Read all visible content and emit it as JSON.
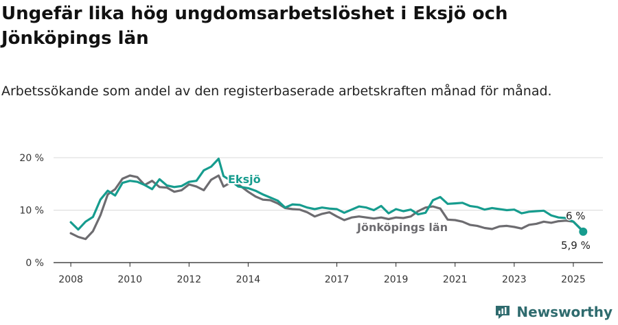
{
  "title": "Ungefär lika hög ungdomsarbetslöshet i Eksjö och Jönköpings län",
  "subtitle": "Arbetssökande som andel av den registerbaserade arbetskraften månad för månad.",
  "brand": {
    "name": "Newsworthy",
    "logo_icon": "newsworthy-logo-icon"
  },
  "colors": {
    "eksjo": "#169c8e",
    "lan": "#6d6c70",
    "grid": "#d9d9d9",
    "axis": "#222222"
  },
  "chart_data": {
    "type": "line",
    "y_axis": {
      "ylim": [
        0,
        20
      ],
      "ticks": [
        0,
        10,
        20
      ],
      "tick_labels": [
        "0 %",
        "10 %",
        "20 %"
      ],
      "unit": "%"
    },
    "x_axis": {
      "xlim": [
        "2007-06",
        "2026-01"
      ],
      "ticks": [
        2008,
        2010,
        2012,
        2014,
        2017,
        2019,
        2021,
        2023,
        2025
      ],
      "tick_labels": [
        "2008",
        "2010",
        "2012",
        "2014",
        "2017",
        "2019",
        "2021",
        "2023",
        "2025"
      ]
    },
    "grid": true,
    "series": [
      {
        "name": "Eksjö",
        "label": "Eksjö",
        "end_label": "5,9 %",
        "points": [
          [
            "2008-01",
            7.7
          ],
          [
            "2008-04",
            6.3
          ],
          [
            "2008-07",
            7.8
          ],
          [
            "2008-10",
            8.7
          ],
          [
            "2009-01",
            12.0
          ],
          [
            "2009-04",
            13.7
          ],
          [
            "2009-07",
            12.8
          ],
          [
            "2009-10",
            15.2
          ],
          [
            "2010-01",
            15.6
          ],
          [
            "2010-04",
            15.4
          ],
          [
            "2010-07",
            14.8
          ],
          [
            "2010-10",
            14.0
          ],
          [
            "2011-01",
            15.9
          ],
          [
            "2011-04",
            14.7
          ],
          [
            "2011-07",
            14.4
          ],
          [
            "2011-10",
            14.6
          ],
          [
            "2012-01",
            15.4
          ],
          [
            "2012-04",
            15.6
          ],
          [
            "2012-07",
            17.6
          ],
          [
            "2012-10",
            18.3
          ],
          [
            "2013-01",
            19.8
          ],
          [
            "2013-03",
            16.5
          ],
          [
            "2013-06",
            15.6
          ],
          [
            "2013-09",
            14.5
          ],
          [
            "2014-01",
            14.2
          ],
          [
            "2014-04",
            13.7
          ],
          [
            "2014-07",
            13.0
          ],
          [
            "2014-10",
            12.4
          ],
          [
            "2015-01",
            11.8
          ],
          [
            "2015-04",
            10.5
          ],
          [
            "2015-07",
            11.1
          ],
          [
            "2015-10",
            11.0
          ],
          [
            "2016-01",
            10.5
          ],
          [
            "2016-04",
            10.2
          ],
          [
            "2016-07",
            10.5
          ],
          [
            "2016-10",
            10.3
          ],
          [
            "2017-01",
            10.2
          ],
          [
            "2017-04",
            9.5
          ],
          [
            "2017-07",
            10.1
          ],
          [
            "2017-10",
            10.7
          ],
          [
            "2018-01",
            10.5
          ],
          [
            "2018-04",
            10.0
          ],
          [
            "2018-07",
            10.8
          ],
          [
            "2018-10",
            9.4
          ],
          [
            "2019-01",
            10.2
          ],
          [
            "2019-04",
            9.8
          ],
          [
            "2019-07",
            10.1
          ],
          [
            "2019-10",
            9.2
          ],
          [
            "2020-01",
            9.5
          ],
          [
            "2020-04",
            11.9
          ],
          [
            "2020-07",
            12.5
          ],
          [
            "2020-10",
            11.2
          ],
          [
            "2021-01",
            11.3
          ],
          [
            "2021-04",
            11.4
          ],
          [
            "2021-07",
            10.8
          ],
          [
            "2021-10",
            10.6
          ],
          [
            "2022-01",
            10.1
          ],
          [
            "2022-04",
            10.4
          ],
          [
            "2022-07",
            10.2
          ],
          [
            "2022-10",
            10.0
          ],
          [
            "2023-01",
            10.1
          ],
          [
            "2023-04",
            9.4
          ],
          [
            "2023-07",
            9.7
          ],
          [
            "2023-10",
            9.8
          ],
          [
            "2024-01",
            9.9
          ],
          [
            "2024-04",
            9.0
          ],
          [
            "2024-07",
            8.6
          ],
          [
            "2024-10",
            8.5
          ],
          [
            "2025-01",
            7.8
          ],
          [
            "2025-05",
            5.9
          ]
        ]
      },
      {
        "name": "Jönköpings län",
        "label": "Jönköpings län",
        "end_label": "6 %",
        "points": [
          [
            "2008-01",
            5.6
          ],
          [
            "2008-04",
            4.9
          ],
          [
            "2008-07",
            4.5
          ],
          [
            "2008-10",
            6.0
          ],
          [
            "2009-01",
            9.0
          ],
          [
            "2009-04",
            13.0
          ],
          [
            "2009-07",
            14.0
          ],
          [
            "2009-10",
            16.0
          ],
          [
            "2010-01",
            16.6
          ],
          [
            "2010-04",
            16.3
          ],
          [
            "2010-07",
            14.8
          ],
          [
            "2010-10",
            15.6
          ],
          [
            "2011-01",
            14.4
          ],
          [
            "2011-04",
            14.3
          ],
          [
            "2011-07",
            13.5
          ],
          [
            "2011-10",
            13.8
          ],
          [
            "2012-01",
            14.9
          ],
          [
            "2012-04",
            14.5
          ],
          [
            "2012-07",
            13.8
          ],
          [
            "2012-10",
            15.8
          ],
          [
            "2013-01",
            16.6
          ],
          [
            "2013-03",
            14.5
          ],
          [
            "2013-06",
            15.3
          ],
          [
            "2013-09",
            14.9
          ],
          [
            "2014-01",
            13.5
          ],
          [
            "2014-04",
            12.6
          ],
          [
            "2014-07",
            12.0
          ],
          [
            "2014-10",
            11.9
          ],
          [
            "2015-01",
            11.3
          ],
          [
            "2015-04",
            10.4
          ],
          [
            "2015-07",
            10.2
          ],
          [
            "2015-10",
            10.1
          ],
          [
            "2016-01",
            9.6
          ],
          [
            "2016-04",
            8.8
          ],
          [
            "2016-07",
            9.3
          ],
          [
            "2016-10",
            9.6
          ],
          [
            "2017-01",
            8.8
          ],
          [
            "2017-04",
            8.1
          ],
          [
            "2017-07",
            8.6
          ],
          [
            "2017-10",
            8.8
          ],
          [
            "2018-01",
            8.6
          ],
          [
            "2018-04",
            8.4
          ],
          [
            "2018-07",
            8.6
          ],
          [
            "2018-10",
            8.3
          ],
          [
            "2019-01",
            8.6
          ],
          [
            "2019-04",
            8.5
          ],
          [
            "2019-07",
            8.8
          ],
          [
            "2019-10",
            9.8
          ],
          [
            "2020-01",
            10.5
          ],
          [
            "2020-04",
            10.7
          ],
          [
            "2020-07",
            10.3
          ],
          [
            "2020-10",
            8.2
          ],
          [
            "2021-01",
            8.1
          ],
          [
            "2021-04",
            7.8
          ],
          [
            "2021-07",
            7.2
          ],
          [
            "2021-10",
            7.0
          ],
          [
            "2022-01",
            6.6
          ],
          [
            "2022-04",
            6.4
          ],
          [
            "2022-07",
            6.9
          ],
          [
            "2022-10",
            7.0
          ],
          [
            "2023-01",
            6.8
          ],
          [
            "2023-04",
            6.5
          ],
          [
            "2023-07",
            7.2
          ],
          [
            "2023-10",
            7.4
          ],
          [
            "2024-01",
            7.8
          ],
          [
            "2024-04",
            7.6
          ],
          [
            "2024-07",
            7.9
          ],
          [
            "2024-10",
            8.0
          ],
          [
            "2025-01",
            7.8
          ],
          [
            "2025-05",
            6.0
          ]
        ]
      }
    ]
  }
}
